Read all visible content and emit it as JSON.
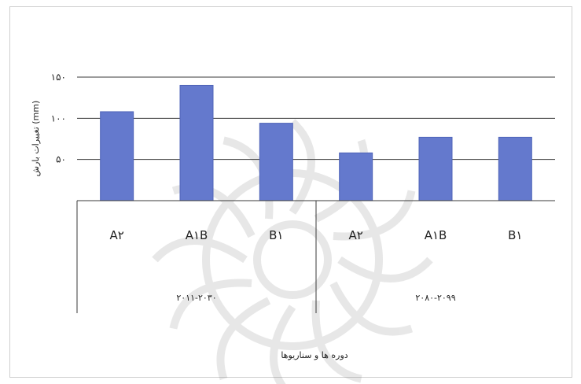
{
  "chart_data": {
    "type": "bar",
    "groups": [
      "۲۰۱۱-۲۰۳۰",
      "۲۰۸۰-۲۰۹۹"
    ],
    "categories": [
      "A۲",
      "A۱B",
      "B۱",
      "A۲",
      "A۱B",
      "B۱"
    ],
    "group_index": [
      0,
      0,
      0,
      1,
      1,
      1
    ],
    "values": [
      108,
      140,
      94,
      58,
      77,
      77
    ],
    "ylabel": "تغییرات بارش (mm)",
    "xlabel": "دوره ها و سناریوها",
    "ylim": [
      0,
      150
    ],
    "yticks": [
      0,
      50,
      100,
      150
    ],
    "ytick_labels": [
      "",
      "۵۰",
      "۱۰۰",
      "۱۵۰"
    ],
    "grid": true,
    "legend": "none",
    "bar_color": "#6479cd",
    "bar_edge_color": "#4f64b8"
  }
}
